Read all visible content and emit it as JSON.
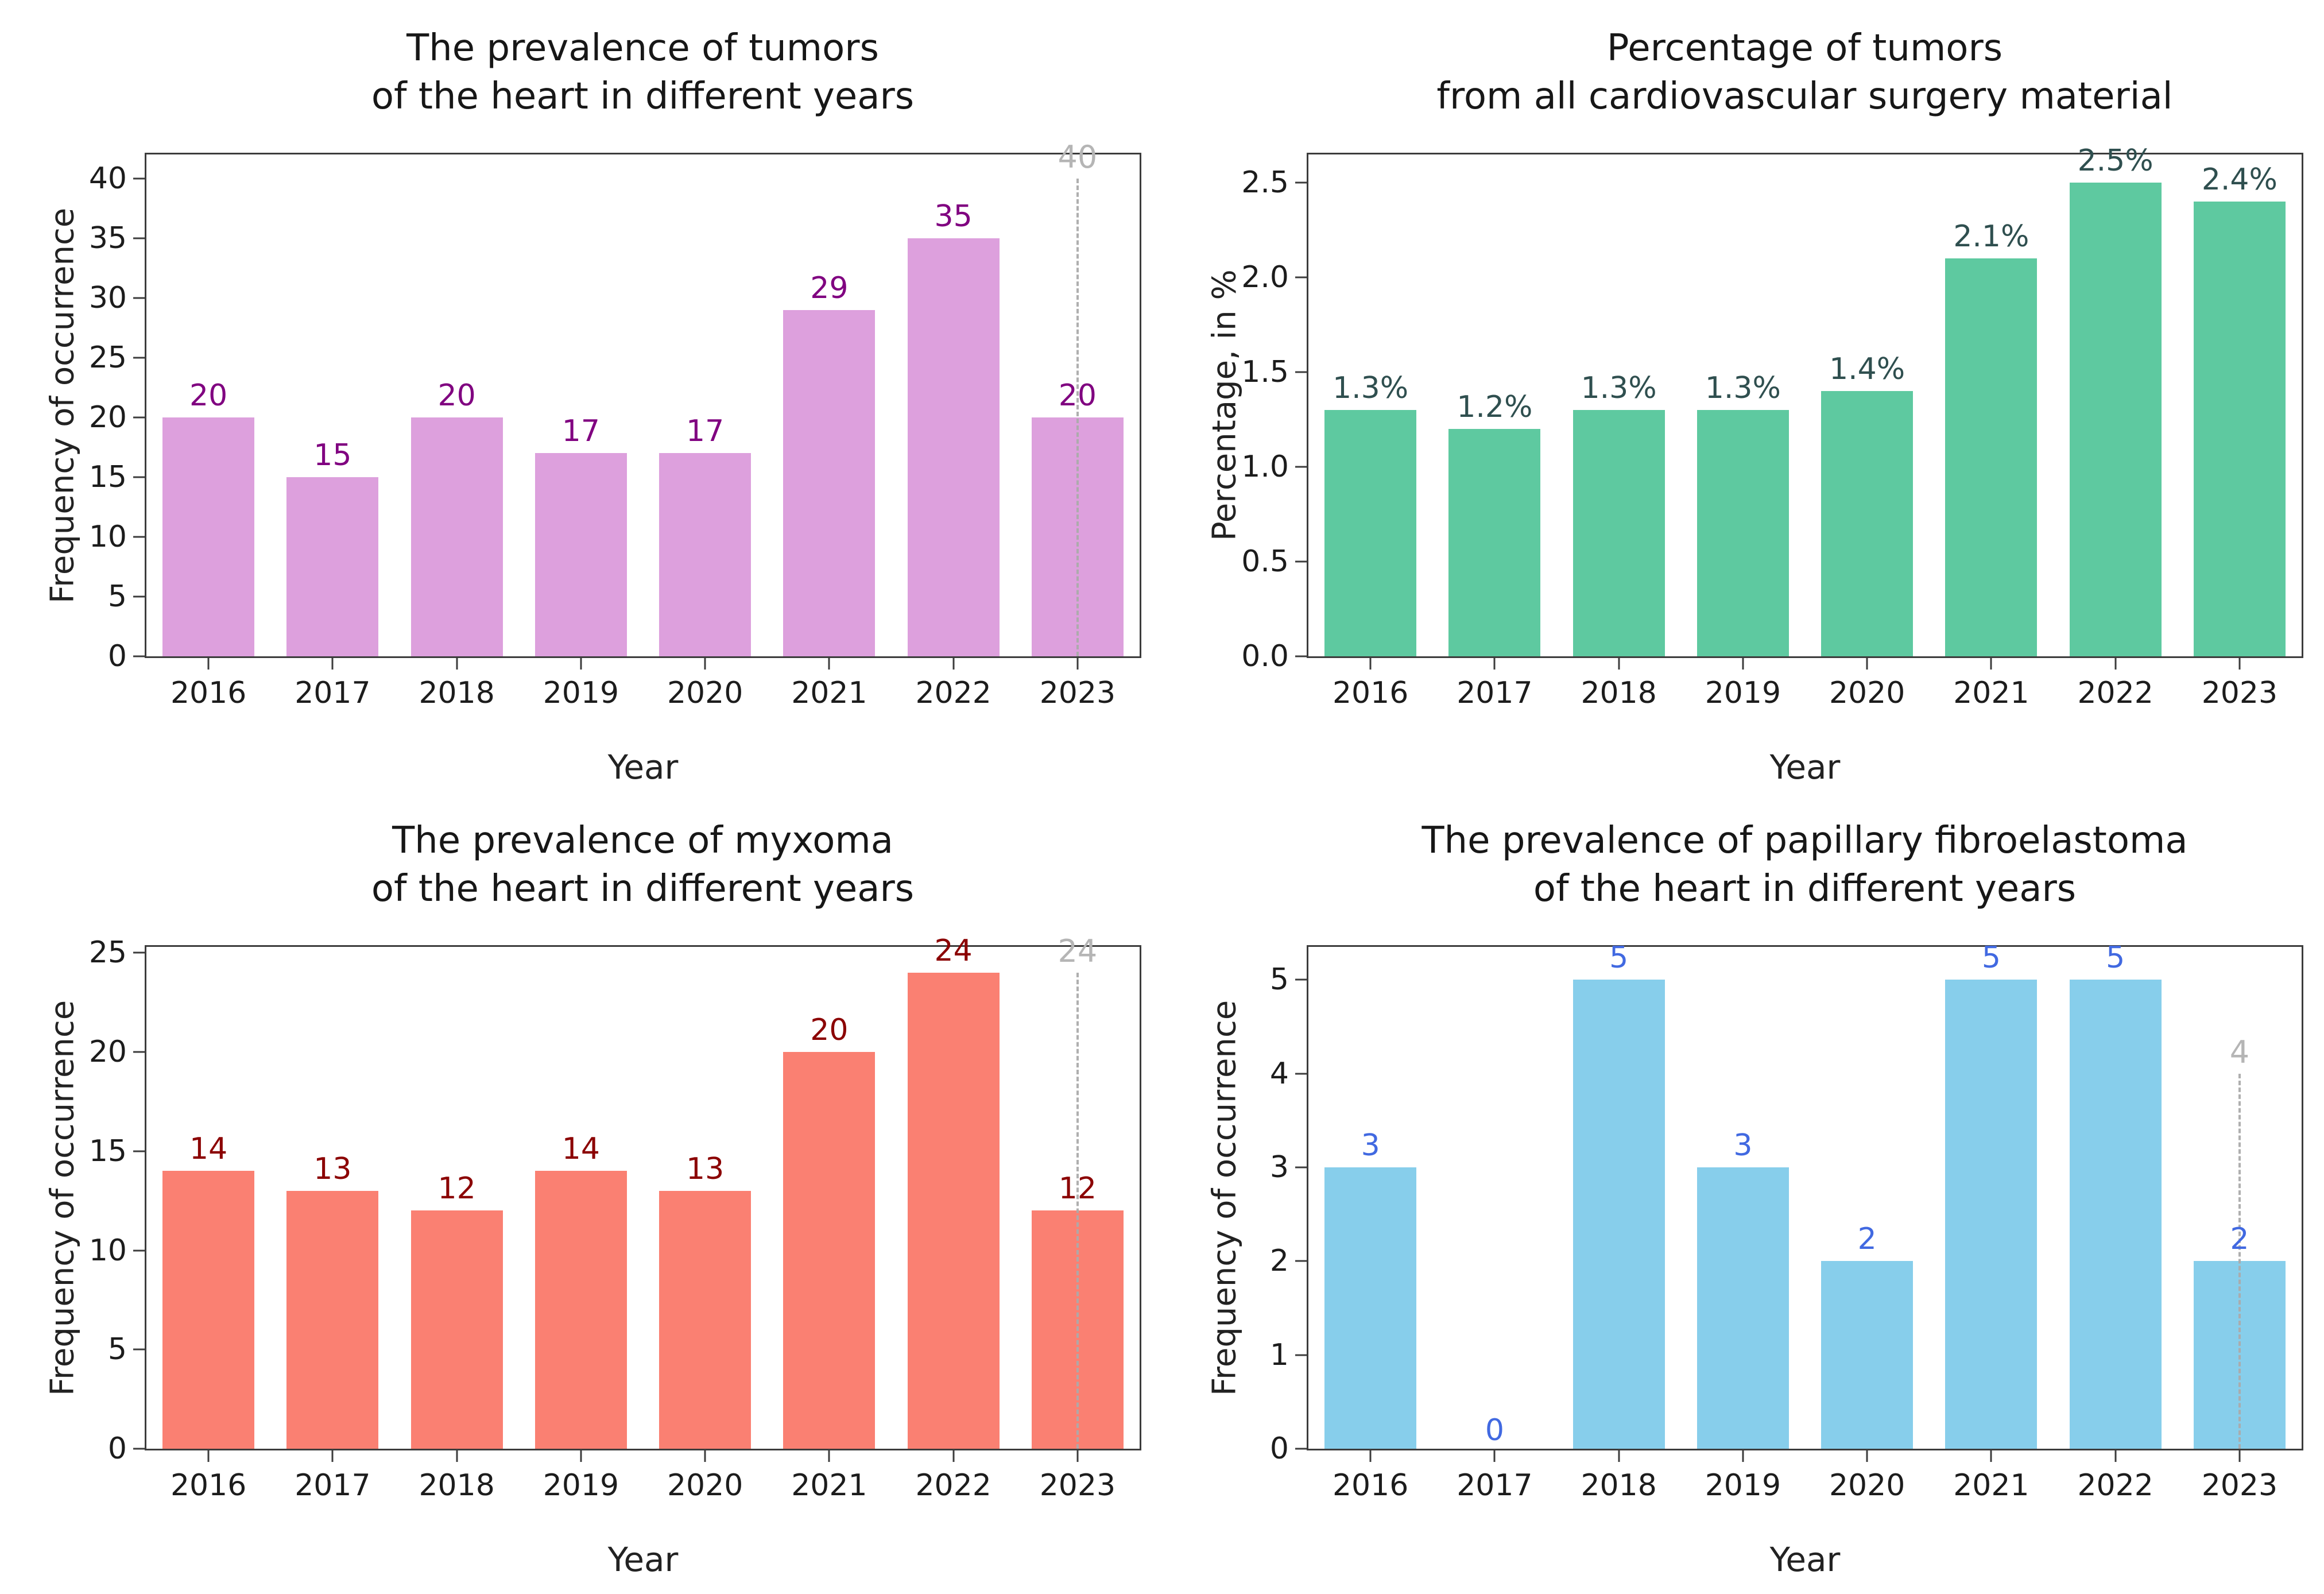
{
  "figure": {
    "background": "#ffffff",
    "spine_color": "#3c3c3c",
    "forecast_line_color": "#ababab",
    "forecast_label_color": "#b5b5b5"
  },
  "chart_data": [
    {
      "type": "bar",
      "title": "The prevalence of tumors\nof the heart in different years",
      "title_line1": "The prevalence of tumors",
      "title_line2": "of the heart in different years",
      "xlabel": "Year",
      "ylabel": "Frequency of occurrence",
      "categories": [
        "2016",
        "2017",
        "2018",
        "2019",
        "2020",
        "2021",
        "2022",
        "2023"
      ],
      "values": [
        20,
        15,
        20,
        17,
        17,
        29,
        35,
        20
      ],
      "bar_labels": [
        "20",
        "15",
        "20",
        "17",
        "17",
        "29",
        "35",
        "20"
      ],
      "yticks": [
        {
          "value": 0,
          "label": "0"
        },
        {
          "value": 5,
          "label": "5"
        },
        {
          "value": 10,
          "label": "10"
        },
        {
          "value": 15,
          "label": "15"
        },
        {
          "value": 20,
          "label": "20"
        },
        {
          "value": 25,
          "label": "25"
        },
        {
          "value": 30,
          "label": "30"
        },
        {
          "value": 35,
          "label": "35"
        },
        {
          "value": 40,
          "label": "40"
        }
      ],
      "ylim": [
        0,
        42
      ],
      "grid": false,
      "legend": null,
      "bar_color": "#dda0dd",
      "label_color": "#800080",
      "forecast": {
        "category": "2023",
        "value": 40,
        "label": "40"
      }
    },
    {
      "type": "bar",
      "title": "Percentage of tumors\nfrom all cardiovascular surgery material",
      "title_line1": "Percentage of tumors",
      "title_line2": "from all cardiovascular surgery material",
      "xlabel": "Year",
      "ylabel": "Percentage, in %",
      "categories": [
        "2016",
        "2017",
        "2018",
        "2019",
        "2020",
        "2021",
        "2022",
        "2023"
      ],
      "values": [
        1.3,
        1.2,
        1.3,
        1.3,
        1.4,
        2.1,
        2.5,
        2.4
      ],
      "bar_labels": [
        "1.3%",
        "1.2%",
        "1.3%",
        "1.3%",
        "1.4%",
        "2.1%",
        "2.5%",
        "2.4%"
      ],
      "yticks": [
        {
          "value": 0,
          "label": "0.0"
        },
        {
          "value": 0.5,
          "label": "0.5"
        },
        {
          "value": 1.0,
          "label": "1.0"
        },
        {
          "value": 1.5,
          "label": "1.5"
        },
        {
          "value": 2.0,
          "label": "2.0"
        },
        {
          "value": 2.5,
          "label": "2.5"
        }
      ],
      "ylim": [
        0,
        2.65
      ],
      "grid": false,
      "legend": null,
      "bar_color": "#5ec9a0",
      "label_color": "#2f4f4f",
      "forecast": null
    },
    {
      "type": "bar",
      "title": "The prevalence of myxoma\nof the heart in different years",
      "title_line1": "The prevalence of myxoma",
      "title_line2": "of the heart in different years",
      "xlabel": "Year",
      "ylabel": "Frequency of occurrence",
      "categories": [
        "2016",
        "2017",
        "2018",
        "2019",
        "2020",
        "2021",
        "2022",
        "2023"
      ],
      "values": [
        14,
        13,
        12,
        14,
        13,
        20,
        24,
        12
      ],
      "bar_labels": [
        "14",
        "13",
        "12",
        "14",
        "13",
        "20",
        "24",
        "12"
      ],
      "yticks": [
        {
          "value": 0,
          "label": "0"
        },
        {
          "value": 5,
          "label": "5"
        },
        {
          "value": 10,
          "label": "10"
        },
        {
          "value": 15,
          "label": "15"
        },
        {
          "value": 20,
          "label": "20"
        },
        {
          "value": 25,
          "label": "25"
        }
      ],
      "ylim": [
        0,
        25.3
      ],
      "grid": false,
      "legend": null,
      "bar_color": "#fa8072",
      "label_color": "#8b0000",
      "forecast": {
        "category": "2023",
        "value": 24,
        "label": "24"
      }
    },
    {
      "type": "bar",
      "title": "The prevalence of papillary fibroelastoma\nof the heart in different years",
      "title_line1": "The prevalence of papillary fibroelastoma",
      "title_line2": "of the heart in different years",
      "xlabel": "Year",
      "ylabel": "Frequency of occurrence",
      "categories": [
        "2016",
        "2017",
        "2018",
        "2019",
        "2020",
        "2021",
        "2022",
        "2023"
      ],
      "values": [
        3,
        0,
        5,
        3,
        2,
        5,
        5,
        2
      ],
      "bar_labels": [
        "3",
        "0",
        "5",
        "3",
        "2",
        "5",
        "5",
        "2"
      ],
      "yticks": [
        {
          "value": 0,
          "label": "0"
        },
        {
          "value": 1,
          "label": "1"
        },
        {
          "value": 2,
          "label": "2"
        },
        {
          "value": 3,
          "label": "3"
        },
        {
          "value": 4,
          "label": "4"
        },
        {
          "value": 5,
          "label": "5"
        }
      ],
      "ylim": [
        0,
        5.35
      ],
      "grid": false,
      "legend": null,
      "bar_color": "#87ceeb",
      "label_color": "#4169e1",
      "forecast": {
        "category": "2023",
        "value": 4,
        "label": "4"
      }
    }
  ]
}
